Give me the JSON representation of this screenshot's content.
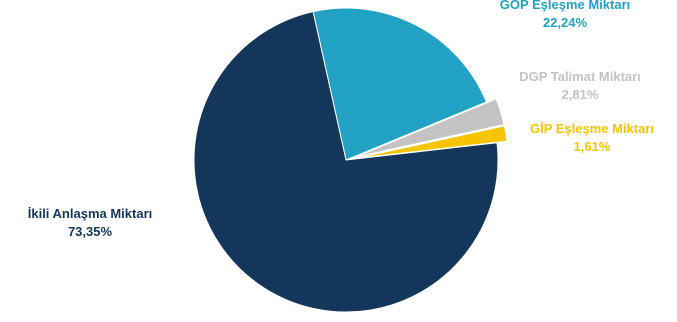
{
  "chart_data": {
    "type": "pie",
    "slices": [
      {
        "label": "GÖP Eşleşme Miktarı",
        "value": 22.24,
        "value_label": "22,24%",
        "color": "#21a1c4"
      },
      {
        "label": "DGP Talimat Miktarı",
        "value": 2.81,
        "value_label": "2,81%",
        "color": "#c3c3c3"
      },
      {
        "label": "GİP Eşleşme Miktarı",
        "value": 1.61,
        "value_label": "1,61%",
        "color": "#f6c400"
      },
      {
        "label": "İkili Anlaşma Miktarı",
        "value": 73.35,
        "value_label": "73,35%",
        "color": "#14365a"
      }
    ],
    "exploded": [
      "DGP Talimat Miktarı",
      "GİP Eşleşme Miktarı"
    ],
    "legend": "none",
    "data_labels": "outside"
  }
}
